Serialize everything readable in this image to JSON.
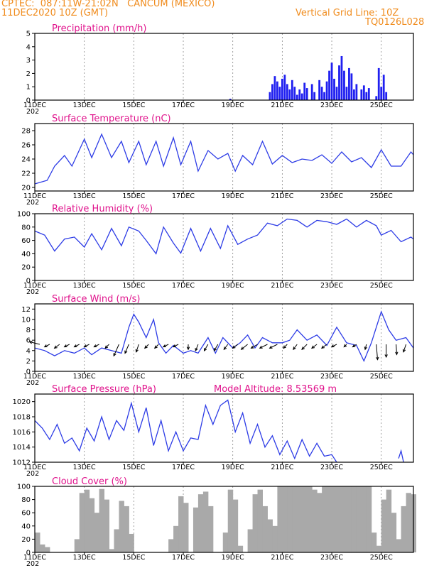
{
  "header": {
    "line1": "CPTEC:  087:11W-21:02N   CANCUM (MEXICO)",
    "line2": "11DEC2020 10Z (GMT)",
    "grid_note": "Vertical Grid Line: 10Z",
    "model_code": "TQ0126L028"
  },
  "colors": {
    "header": "#f08c1e",
    "panel_title": "#e0138c",
    "line": "#2d3ce6",
    "bar": "#2020f0",
    "cloud": "#a9a9a9",
    "arrow": "#000000"
  },
  "x_axis": {
    "ticks": [
      "11DEC",
      "13DEC",
      "15DEC",
      "17DEC",
      "19DEC",
      "21DEC",
      "23DEC",
      "25DEC"
    ],
    "tick_day": [
      11,
      13,
      15,
      17,
      19,
      21,
      23,
      25
    ],
    "range": [
      11.0,
      26.3
    ],
    "cut_label": "202"
  },
  "panels": [
    {
      "key": "precip",
      "title": "Precipitation (mm/h)",
      "yticks": [
        "0",
        "1",
        "2",
        "3",
        "4",
        "5"
      ],
      "ytick_values": [
        0,
        1,
        2,
        3,
        4,
        5
      ],
      "ylim": [
        0,
        5
      ]
    },
    {
      "key": "temp",
      "title": "Surface Temperature (nC)",
      "yticks": [
        "20",
        "22",
        "24",
        "26",
        "28"
      ],
      "ytick_values": [
        20,
        22,
        24,
        26,
        28
      ],
      "ylim": [
        19.5,
        29
      ]
    },
    {
      "key": "rh",
      "title": "Relative Humidity (%)",
      "yticks": [
        "0",
        "20",
        "40",
        "60",
        "80",
        "100"
      ],
      "ytick_values": [
        0,
        20,
        40,
        60,
        80,
        100
      ],
      "ylim": [
        0,
        100
      ]
    },
    {
      "key": "wind",
      "title": "Surface Wind (m/s)",
      "yticks": [
        "0",
        "2",
        "4",
        "6",
        "8",
        "10",
        "12"
      ],
      "ytick_values": [
        0,
        2,
        4,
        6,
        8,
        10,
        12
      ],
      "ylim": [
        0,
        13
      ]
    },
    {
      "key": "pres",
      "title": "Surface Pressure (hPa)",
      "extra_title": "Model Altitude: 8.53569 m",
      "yticks": [
        "1012",
        "1014",
        "1016",
        "1018",
        "1020"
      ],
      "ytick_values": [
        1012,
        1014,
        1016,
        1018,
        1020
      ],
      "ylim": [
        1012,
        1021
      ]
    },
    {
      "key": "cloud",
      "title": "Cloud Cover (%)",
      "yticks": [
        "0",
        "20",
        "40",
        "60",
        "80",
        "100"
      ],
      "ytick_values": [
        0,
        20,
        40,
        60,
        80,
        100
      ],
      "ylim": [
        0,
        100
      ]
    }
  ],
  "chart_data": [
    {
      "type": "bar",
      "title": "Precipitation (mm/h)",
      "ylim": [
        0,
        5
      ],
      "x": [
        18.9,
        20.5,
        20.6,
        20.7,
        20.8,
        20.9,
        21.0,
        21.1,
        21.2,
        21.3,
        21.4,
        21.5,
        21.6,
        21.7,
        21.8,
        21.9,
        22.0,
        22.2,
        22.3,
        22.5,
        22.6,
        22.7,
        22.8,
        22.9,
        23.0,
        23.1,
        23.2,
        23.3,
        23.4,
        23.5,
        23.6,
        23.7,
        23.8,
        23.9,
        24.0,
        24.2,
        24.3,
        24.4,
        24.5,
        24.8,
        24.9,
        25.0,
        25.1,
        25.2
      ],
      "values": [
        0.1,
        0.6,
        1.2,
        1.8,
        1.4,
        1.0,
        1.6,
        1.9,
        1.2,
        0.8,
        1.5,
        1.0,
        0.4,
        0.8,
        0.5,
        1.3,
        0.9,
        1.2,
        0.6,
        1.5,
        1.0,
        0.6,
        1.4,
        2.2,
        2.8,
        1.6,
        1.0,
        2.6,
        3.3,
        2.2,
        1.0,
        2.4,
        2.0,
        0.8,
        1.2,
        0.8,
        1.1,
        0.6,
        0.9,
        0.3,
        2.4,
        1.0,
        1.9,
        0.6
      ]
    },
    {
      "type": "line",
      "title": "Surface Temperature (nC)",
      "ylim": [
        19.5,
        29
      ],
      "x": [
        11.0,
        11.5,
        11.8,
        12.2,
        12.5,
        13.0,
        13.3,
        13.7,
        14.1,
        14.5,
        14.8,
        15.2,
        15.5,
        15.9,
        16.2,
        16.6,
        16.9,
        17.3,
        17.6,
        18.0,
        18.4,
        18.8,
        19.1,
        19.4,
        19.8,
        20.2,
        20.6,
        21.0,
        21.4,
        21.8,
        22.2,
        22.6,
        23.0,
        23.4,
        23.8,
        24.2,
        24.6,
        25.0,
        25.4,
        25.8,
        26.2,
        26.3
      ],
      "values": [
        20.5,
        21.0,
        23.0,
        24.5,
        23.0,
        26.8,
        24.2,
        27.5,
        24.2,
        26.5,
        23.5,
        26.5,
        23.2,
        26.5,
        23.0,
        27.0,
        23.2,
        26.5,
        22.3,
        25.2,
        24.0,
        24.8,
        22.3,
        24.5,
        23.2,
        26.5,
        23.3,
        24.5,
        23.5,
        24.0,
        23.8,
        24.6,
        23.4,
        25.0,
        23.6,
        24.2,
        22.8,
        25.3,
        23.0,
        23.0,
        25.0,
        24.6
      ]
    },
    {
      "type": "line",
      "title": "Relative Humidity (%)",
      "ylim": [
        0,
        100
      ],
      "x": [
        11.0,
        11.4,
        11.8,
        12.2,
        12.6,
        13.0,
        13.3,
        13.7,
        14.1,
        14.5,
        14.8,
        15.2,
        15.5,
        15.9,
        16.2,
        16.6,
        16.9,
        17.3,
        17.7,
        18.1,
        18.5,
        18.8,
        19.2,
        19.6,
        20.0,
        20.4,
        20.8,
        21.2,
        21.6,
        22.0,
        22.4,
        22.8,
        23.2,
        23.6,
        24.0,
        24.4,
        24.8,
        25.0,
        25.4,
        25.8,
        26.2,
        26.3
      ],
      "values": [
        74,
        68,
        44,
        62,
        65,
        50,
        70,
        46,
        78,
        52,
        80,
        74,
        60,
        40,
        80,
        56,
        41,
        78,
        44,
        78,
        48,
        82,
        54,
        62,
        68,
        86,
        82,
        92,
        90,
        80,
        90,
        88,
        84,
        92,
        80,
        90,
        82,
        68,
        75,
        58,
        65,
        62
      ]
    },
    {
      "type": "line",
      "title": "Surface Wind (m/s)",
      "ylim": [
        0,
        13
      ],
      "x": [
        11.0,
        11.4,
        11.8,
        12.2,
        12.6,
        13.0,
        13.3,
        13.7,
        14.1,
        14.5,
        14.8,
        15.0,
        15.2,
        15.5,
        15.8,
        16.0,
        16.3,
        16.6,
        17.0,
        17.3,
        17.6,
        18.0,
        18.3,
        18.6,
        19.0,
        19.3,
        19.6,
        19.9,
        20.2,
        20.6,
        21.0,
        21.3,
        21.6,
        22.0,
        22.4,
        22.8,
        23.2,
        23.6,
        24.0,
        24.3,
        24.6,
        25.0,
        25.3,
        25.6,
        26.0,
        26.3
      ],
      "values": [
        4.5,
        4.0,
        3.0,
        4.0,
        3.5,
        4.5,
        3.2,
        4.5,
        4.0,
        3.5,
        8.5,
        11.0,
        9.5,
        6.5,
        10.0,
        5.5,
        3.5,
        5.0,
        3.5,
        4.0,
        3.5,
        6.5,
        3.5,
        6.5,
        4.5,
        5.5,
        7.0,
        4.5,
        6.5,
        5.5,
        5.5,
        6.0,
        8.0,
        6.0,
        7.0,
        5.0,
        8.5,
        5.5,
        5.0,
        2.0,
        5.5,
        11.5,
        8.0,
        6.0,
        6.5,
        4.5
      ],
      "wind_arrows": {
        "x": [
          11.2,
          11.6,
          12.0,
          12.4,
          12.8,
          13.2,
          13.6,
          14.0,
          14.4,
          14.8,
          15.2,
          15.6,
          16.0,
          16.4,
          16.8,
          17.2,
          17.6,
          18.0,
          18.4,
          18.8,
          19.2,
          19.6,
          20.0,
          20.4,
          20.8,
          21.2,
          21.6,
          22.0,
          22.4,
          22.8,
          23.2,
          23.6,
          24.0,
          24.4,
          24.8,
          25.2,
          25.6,
          26.0
        ],
        "u": [
          -1.6,
          -0.8,
          -0.8,
          -0.8,
          -0.8,
          -0.8,
          -0.8,
          -0.6,
          -0.8,
          -0.6,
          -0.4,
          -0.6,
          -0.6,
          -0.8,
          -0.8,
          0.0,
          -0.4,
          -0.6,
          -0.6,
          -0.6,
          -0.8,
          -1.0,
          -1.0,
          -1.2,
          -1.2,
          -0.6,
          -0.6,
          -0.8,
          -0.8,
          -0.8,
          -0.8,
          -0.4,
          -0.6,
          -0.2,
          0.2,
          0.0,
          0.1,
          -0.4
        ],
        "v": [
          0.4,
          -0.4,
          -0.6,
          -0.4,
          -0.4,
          -0.4,
          -0.4,
          -0.6,
          -1.8,
          -1.4,
          -1.2,
          -0.6,
          -0.6,
          -0.4,
          -0.4,
          -0.8,
          -1.0,
          -1.0,
          -1.0,
          -0.8,
          -0.6,
          -0.8,
          -0.6,
          -0.6,
          -0.6,
          -0.6,
          -0.8,
          -0.8,
          -0.6,
          -0.6,
          -0.4,
          -0.4,
          -0.4,
          -0.8,
          -2.4,
          -2.0,
          -1.6,
          -1.2
        ]
      }
    },
    {
      "type": "line",
      "title": "Surface Pressure (hPa)",
      "ylim": [
        1012,
        1021
      ],
      "x": [
        11.0,
        11.3,
        11.6,
        11.9,
        12.2,
        12.5,
        12.8,
        13.1,
        13.4,
        13.7,
        14.0,
        14.3,
        14.6,
        14.9,
        15.2,
        15.5,
        15.8,
        16.1,
        16.4,
        16.7,
        17.0,
        17.3,
        17.6,
        17.9,
        18.2,
        18.5,
        18.8,
        19.1,
        19.4,
        19.7,
        20.0,
        20.3,
        20.6,
        20.9,
        21.2,
        21.5,
        21.8,
        22.1,
        22.4,
        22.7,
        23.0,
        23.2
      ],
      "values": [
        1017.5,
        1016.5,
        1015.0,
        1017.0,
        1014.5,
        1015.2,
        1013.5,
        1016.5,
        1014.8,
        1018.0,
        1015.0,
        1017.5,
        1016.2,
        1019.8,
        1016.0,
        1019.2,
        1014.2,
        1017.5,
        1013.5,
        1016.0,
        1013.5,
        1015.2,
        1015.0,
        1019.5,
        1017.0,
        1019.5,
        1020.2,
        1016.0,
        1018.5,
        1014.5,
        1017.0,
        1014.0,
        1015.5,
        1013.0,
        1014.8,
        1012.5,
        1015.0,
        1012.8,
        1014.5,
        1012.8,
        1013.0,
        1012.0
      ],
      "segment2": {
        "x": [
          25.7,
          25.8,
          25.9
        ],
        "values": [
          1012.5,
          1013.5,
          1012.0
        ]
      }
    },
    {
      "type": "bar",
      "title": "Cloud Cover (%)",
      "ylim": [
        0,
        100
      ],
      "x": [
        11.0,
        11.2,
        11.4,
        11.6,
        11.8,
        12.0,
        12.2,
        12.4,
        12.6,
        12.8,
        13.0,
        13.2,
        13.4,
        13.6,
        13.8,
        14.0,
        14.2,
        14.4,
        14.6,
        14.8,
        15.0,
        15.2,
        15.4,
        15.6,
        15.8,
        16.0,
        16.2,
        16.4,
        16.6,
        16.8,
        17.0,
        17.2,
        17.4,
        17.6,
        17.8,
        18.0,
        18.2,
        18.4,
        18.6,
        18.8,
        19.0,
        19.2,
        19.4,
        19.6,
        19.8,
        20.0,
        20.2,
        20.4,
        20.6,
        20.8,
        21.0,
        21.2,
        21.4,
        21.6,
        21.8,
        22.0,
        22.2,
        22.4,
        22.6,
        22.8,
        23.0,
        23.2,
        23.4,
        23.6,
        23.8,
        24.0,
        24.2,
        24.4,
        24.6,
        24.8,
        25.0,
        25.2,
        25.4,
        25.6,
        25.8,
        26.0,
        26.2
      ],
      "values": [
        30,
        12,
        8,
        0,
        0,
        0,
        0,
        0,
        20,
        90,
        95,
        82,
        60,
        96,
        80,
        5,
        35,
        78,
        70,
        28,
        0,
        0,
        0,
        0,
        0,
        0,
        0,
        20,
        40,
        85,
        75,
        0,
        68,
        88,
        92,
        70,
        0,
        0,
        30,
        95,
        80,
        10,
        0,
        35,
        88,
        95,
        70,
        50,
        40,
        100,
        100,
        100,
        100,
        100,
        100,
        100,
        95,
        90,
        100,
        100,
        100,
        100,
        100,
        100,
        100,
        100,
        100,
        100,
        30,
        10,
        80,
        95,
        60,
        20,
        70,
        90,
        88
      ]
    }
  ]
}
